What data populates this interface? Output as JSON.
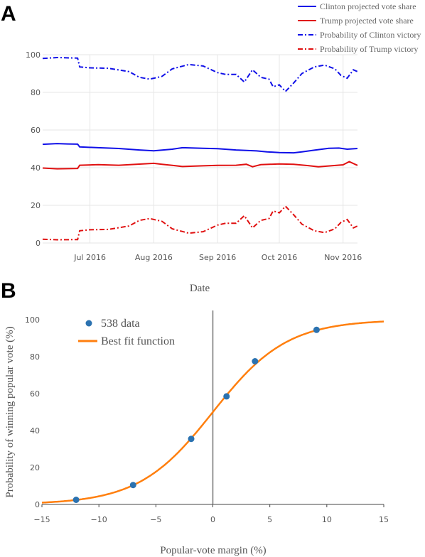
{
  "panels": {
    "a_letter": "A",
    "b_letter": "B"
  },
  "chart_data": [
    {
      "type": "line",
      "xlabel": "Date",
      "ylabel": "",
      "ylim": [
        0,
        100
      ],
      "yticks": [
        "0",
        "20",
        "40",
        "60",
        "80",
        "100"
      ],
      "xticks": [
        {
          "label": "Jul 2016",
          "date": "2016-07-01"
        },
        {
          "label": "Aug 2016",
          "date": "2016-08-01"
        },
        {
          "label": "Sep 2016",
          "date": "2016-09-01"
        },
        {
          "label": "Oct 2016",
          "date": "2016-10-01"
        },
        {
          "label": "Nov 2016",
          "date": "2016-11-01"
        }
      ],
      "xlim": [
        "2016-06-08",
        "2016-11-08"
      ],
      "grid": true,
      "legend_position": "top-right",
      "series": [
        {
          "name": "Clinton projected vote share",
          "color": "#1010e8",
          "dash": "solid",
          "points": [
            [
              "2016-06-08",
              52.4
            ],
            [
              "2016-06-15",
              52.8
            ],
            [
              "2016-06-20",
              52.6
            ],
            [
              "2016-06-25",
              52.5
            ],
            [
              "2016-06-26",
              51.0
            ],
            [
              "2016-07-05",
              50.6
            ],
            [
              "2016-07-15",
              50.2
            ],
            [
              "2016-07-25",
              49.4
            ],
            [
              "2016-08-01",
              49.0
            ],
            [
              "2016-08-10",
              49.8
            ],
            [
              "2016-08-15",
              50.6
            ],
            [
              "2016-08-25",
              50.3
            ],
            [
              "2016-09-01",
              50.1
            ],
            [
              "2016-09-10",
              49.4
            ],
            [
              "2016-09-20",
              48.9
            ],
            [
              "2016-09-25",
              48.4
            ],
            [
              "2016-10-01",
              48.0
            ],
            [
              "2016-10-08",
              47.9
            ],
            [
              "2016-10-12",
              48.4
            ],
            [
              "2016-10-18",
              49.3
            ],
            [
              "2016-10-25",
              50.3
            ],
            [
              "2016-10-30",
              50.4
            ],
            [
              "2016-11-03",
              49.8
            ],
            [
              "2016-11-08",
              50.2
            ]
          ]
        },
        {
          "name": "Trump projected vote share",
          "color": "#e01010",
          "dash": "solid",
          "points": [
            [
              "2016-06-08",
              39.8
            ],
            [
              "2016-06-15",
              39.4
            ],
            [
              "2016-06-25",
              39.6
            ],
            [
              "2016-06-26",
              41.3
            ],
            [
              "2016-07-05",
              41.6
            ],
            [
              "2016-07-15",
              41.3
            ],
            [
              "2016-07-25",
              41.9
            ],
            [
              "2016-08-01",
              42.3
            ],
            [
              "2016-08-05",
              41.8
            ],
            [
              "2016-08-10",
              41.2
            ],
            [
              "2016-08-15",
              40.6
            ],
            [
              "2016-08-25",
              41.0
            ],
            [
              "2016-09-01",
              41.2
            ],
            [
              "2016-09-10",
              41.3
            ],
            [
              "2016-09-15",
              41.8
            ],
            [
              "2016-09-18",
              40.5
            ],
            [
              "2016-09-22",
              41.6
            ],
            [
              "2016-10-01",
              42.0
            ],
            [
              "2016-10-08",
              41.8
            ],
            [
              "2016-10-15",
              41.1
            ],
            [
              "2016-10-20",
              40.5
            ],
            [
              "2016-10-25",
              40.9
            ],
            [
              "2016-11-01",
              41.5
            ],
            [
              "2016-11-04",
              43.2
            ],
            [
              "2016-11-08",
              41.2
            ]
          ]
        },
        {
          "name": "Probability of Clinton victory",
          "color": "#1010e8",
          "dash": "dashdot",
          "points": [
            [
              "2016-06-08",
              98.0
            ],
            [
              "2016-06-15",
              98.5
            ],
            [
              "2016-06-25",
              98.2
            ],
            [
              "2016-06-26",
              93.5
            ],
            [
              "2016-07-01",
              93.0
            ],
            [
              "2016-07-10",
              92.8
            ],
            [
              "2016-07-20",
              91.0
            ],
            [
              "2016-07-25",
              88.0
            ],
            [
              "2016-07-30",
              87.0
            ],
            [
              "2016-08-05",
              88.5
            ],
            [
              "2016-08-10",
              92.5
            ],
            [
              "2016-08-18",
              94.8
            ],
            [
              "2016-08-25",
              94.0
            ],
            [
              "2016-09-01",
              90.5
            ],
            [
              "2016-09-05",
              89.5
            ],
            [
              "2016-09-10",
              89.5
            ],
            [
              "2016-09-14",
              85.5
            ],
            [
              "2016-09-18",
              92.0
            ],
            [
              "2016-09-22",
              88.0
            ],
            [
              "2016-09-26",
              87.0
            ],
            [
              "2016-09-28",
              83.0
            ],
            [
              "2016-10-01",
              84.0
            ],
            [
              "2016-10-04",
              80.5
            ],
            [
              "2016-10-08",
              85.0
            ],
            [
              "2016-10-12",
              90.0
            ],
            [
              "2016-10-18",
              93.5
            ],
            [
              "2016-10-23",
              94.5
            ],
            [
              "2016-10-28",
              92.5
            ],
            [
              "2016-10-31",
              89.0
            ],
            [
              "2016-11-03",
              87.5
            ],
            [
              "2016-11-06",
              92.0
            ],
            [
              "2016-11-08",
              91.0
            ]
          ]
        },
        {
          "name": "Probability of Trump victory",
          "color": "#e01010",
          "dash": "dashdot",
          "points": [
            [
              "2016-06-08",
              2.0
            ],
            [
              "2016-06-15",
              1.7
            ],
            [
              "2016-06-25",
              1.8
            ],
            [
              "2016-06-26",
              6.5
            ],
            [
              "2016-07-01",
              7.0
            ],
            [
              "2016-07-10",
              7.2
            ],
            [
              "2016-07-20",
              9.0
            ],
            [
              "2016-07-25",
              12.0
            ],
            [
              "2016-07-30",
              13.0
            ],
            [
              "2016-08-05",
              11.5
            ],
            [
              "2016-08-10",
              7.5
            ],
            [
              "2016-08-18",
              5.2
            ],
            [
              "2016-08-25",
              6.0
            ],
            [
              "2016-09-01",
              9.5
            ],
            [
              "2016-09-05",
              10.5
            ],
            [
              "2016-09-10",
              10.5
            ],
            [
              "2016-09-14",
              14.5
            ],
            [
              "2016-09-18",
              8.0
            ],
            [
              "2016-09-22",
              12.0
            ],
            [
              "2016-09-26",
              13.0
            ],
            [
              "2016-09-28",
              17.0
            ],
            [
              "2016-10-01",
              16.0
            ],
            [
              "2016-10-04",
              19.5
            ],
            [
              "2016-10-08",
              15.0
            ],
            [
              "2016-10-12",
              10.0
            ],
            [
              "2016-10-18",
              6.5
            ],
            [
              "2016-10-23",
              5.5
            ],
            [
              "2016-10-28",
              7.5
            ],
            [
              "2016-10-31",
              11.0
            ],
            [
              "2016-11-03",
              12.5
            ],
            [
              "2016-11-06",
              8.0
            ],
            [
              "2016-11-08",
              9.0
            ]
          ]
        }
      ]
    },
    {
      "type": "scatter",
      "xlabel": "Popular-vote margin (%)",
      "ylabel": "Probability of winning popular vote (%)",
      "xlim": [
        -15,
        15
      ],
      "ylim": [
        0,
        100
      ],
      "xticks": [
        "−15",
        "−10",
        "−5",
        "0",
        "5",
        "10",
        "15"
      ],
      "yticks": [
        "0",
        "20",
        "40",
        "60",
        "80",
        "100"
      ],
      "xtick_values": [
        -15,
        -10,
        -5,
        0,
        5,
        10,
        15
      ],
      "ytick_values": [
        0,
        20,
        40,
        60,
        80,
        100
      ],
      "vertical_line_x": 0,
      "grid": false,
      "legend_position": "top-left",
      "series": [
        {
          "name": "538 data",
          "type": "scatter",
          "color": "#2b72b0",
          "x": [
            -12,
            -7,
            -1.9,
            1.2,
            3.7,
            9.1
          ],
          "y": [
            2.5,
            10.5,
            35.5,
            58.5,
            77.5,
            94.5
          ]
        },
        {
          "name": "Best fit function",
          "type": "line",
          "color": "#ff7f0e",
          "function": "logistic",
          "midpoint": 0,
          "scale": 3.25
        }
      ]
    }
  ]
}
